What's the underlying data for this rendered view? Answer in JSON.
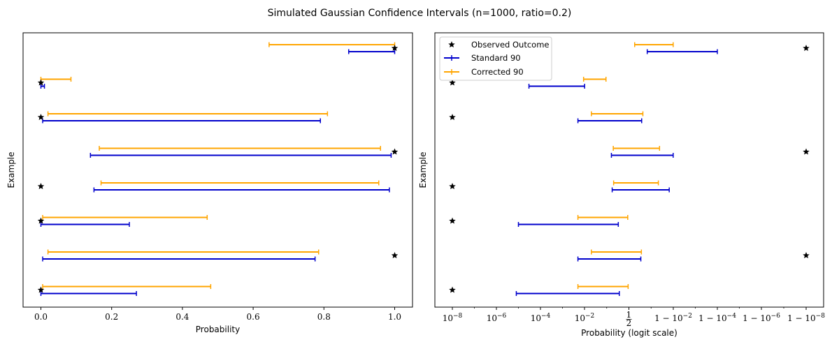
{
  "figure": {
    "title": "Simulated Gaussian Confidence Intervals (n=1000, ratio=0.2)"
  },
  "colors": {
    "standard": "#0000cc",
    "corrected": "#ffa500",
    "observed": "#000000"
  },
  "chart_data": [
    {
      "type": "errorbar",
      "panel": "left",
      "xlabel": "Probability",
      "ylabel": "Example",
      "xscale": "linear",
      "xlim": [
        -0.05,
        1.05
      ],
      "xticks": [
        0.0,
        0.2,
        0.4,
        0.6,
        0.8,
        1.0
      ],
      "xtick_labels": [
        "0.0",
        "0.2",
        "0.4",
        "0.6",
        "0.8",
        "1.0"
      ],
      "legend": false,
      "grid": false,
      "examples": [
        {
          "observed": 1,
          "standard": [
            0.87,
            1.0
          ],
          "corrected": [
            0.645,
            1.0
          ]
        },
        {
          "observed": 0,
          "standard": [
            0.0,
            0.01
          ],
          "corrected": [
            0.0,
            0.085
          ]
        },
        {
          "observed": 0,
          "standard": [
            0.005,
            0.79
          ],
          "corrected": [
            0.02,
            0.81
          ]
        },
        {
          "observed": 1,
          "standard": [
            0.14,
            0.99
          ],
          "corrected": [
            0.165,
            0.96
          ]
        },
        {
          "observed": 0,
          "standard": [
            0.15,
            0.985
          ],
          "corrected": [
            0.17,
            0.955
          ]
        },
        {
          "observed": 0,
          "standard": [
            0.0,
            0.25
          ],
          "corrected": [
            0.005,
            0.47
          ]
        },
        {
          "observed": 1,
          "standard": [
            0.005,
            0.775
          ],
          "corrected": [
            0.02,
            0.785
          ]
        },
        {
          "observed": 0,
          "standard": [
            0.0,
            0.27
          ],
          "corrected": [
            0.005,
            0.48
          ]
        }
      ]
    },
    {
      "type": "errorbar",
      "panel": "right",
      "xlabel": "Probability (logit scale)",
      "ylabel": "Example",
      "xscale": "logit",
      "legend": true,
      "legend_position": "top-left",
      "grid": false,
      "legend_entries": [
        "Observed Outcome",
        "Standard 90",
        "Corrected 90"
      ],
      "xticks": [
        {
          "base": "10",
          "exp": "−8"
        },
        {
          "base": "10",
          "exp": "−6"
        },
        {
          "base": "10",
          "exp": "−4"
        },
        {
          "base": "10",
          "exp": "−2"
        },
        {
          "frac": "1/2"
        },
        {
          "pre": "1 − 10",
          "exp": "−2"
        },
        {
          "pre": "1 − 10",
          "exp": "−4"
        },
        {
          "pre": "1 − 10",
          "exp": "−6"
        },
        {
          "pre": "1 − 10",
          "exp": "−8"
        }
      ],
      "examples": [
        {
          "observed": 1,
          "standard": [
            0.87,
            0.9999
          ],
          "corrected": [
            0.645,
            0.99
          ]
        },
        {
          "observed": 0,
          "standard": [
            3e-05,
            0.01
          ],
          "corrected": [
            0.009,
            0.085
          ]
        },
        {
          "observed": 0,
          "standard": [
            0.005,
            0.79
          ],
          "corrected": [
            0.02,
            0.81
          ]
        },
        {
          "observed": 1,
          "standard": [
            0.14,
            0.99
          ],
          "corrected": [
            0.165,
            0.96
          ]
        },
        {
          "observed": 0,
          "standard": [
            0.15,
            0.985
          ],
          "corrected": [
            0.17,
            0.955
          ]
        },
        {
          "observed": 0,
          "standard": [
            1e-05,
            0.25
          ],
          "corrected": [
            0.005,
            0.47
          ]
        },
        {
          "observed": 1,
          "standard": [
            0.005,
            0.775
          ],
          "corrected": [
            0.02,
            0.785
          ]
        },
        {
          "observed": 0,
          "standard": [
            8e-06,
            0.27
          ],
          "corrected": [
            0.005,
            0.48
          ]
        }
      ]
    }
  ]
}
